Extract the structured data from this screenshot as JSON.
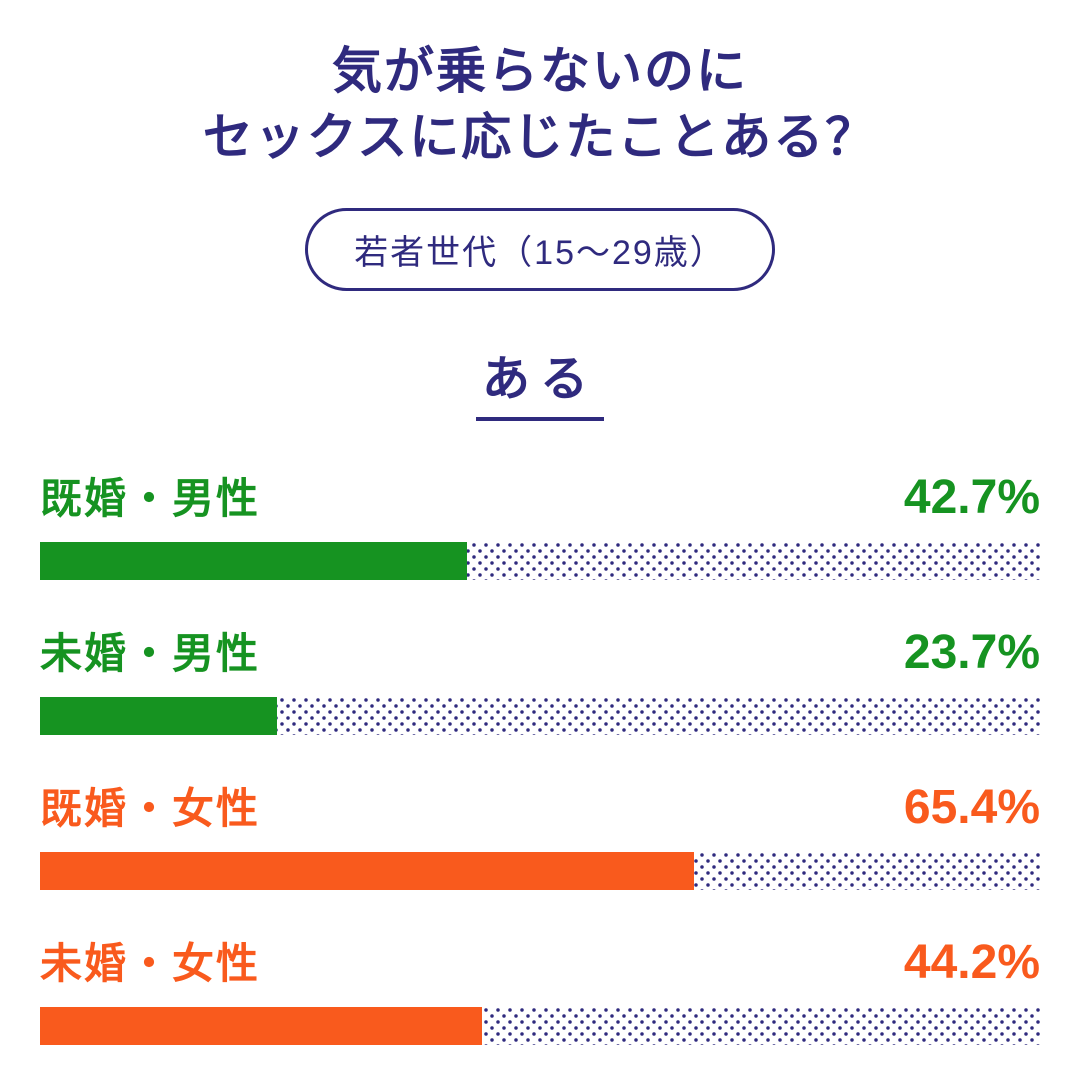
{
  "header": {
    "title_line1": "気が乗らないのに",
    "title_line2": "セックスに応じたことある？",
    "badge": "若者世代（15〜29歳）",
    "section_label": "ある"
  },
  "colors": {
    "navy": "#2f2a7e",
    "green": "#169321",
    "orange": "#f95a1d"
  },
  "chart_data": {
    "type": "bar",
    "orientation": "horizontal",
    "title": "気が乗らないのに セックスに応じたことある？",
    "subtitle": "若者世代（15〜29歳）",
    "section": "ある",
    "unit": "%",
    "xlim": [
      0,
      100
    ],
    "grid": false,
    "legend": "none",
    "categories": [
      "既婚・男性",
      "未婚・男性",
      "既婚・女性",
      "未婚・女性"
    ],
    "values": [
      42.7,
      23.7,
      65.4,
      44.2
    ],
    "rows": [
      {
        "label": "既婚・男性",
        "value": 42.7,
        "value_label": "42.7%",
        "color": "#169321"
      },
      {
        "label": "未婚・男性",
        "value": 23.7,
        "value_label": "23.7%",
        "color": "#169321"
      },
      {
        "label": "既婚・女性",
        "value": 65.4,
        "value_label": "65.4%",
        "color": "#f95a1d"
      },
      {
        "label": "未婚・女性",
        "value": 44.2,
        "value_label": "44.2%",
        "color": "#f95a1d"
      }
    ]
  }
}
